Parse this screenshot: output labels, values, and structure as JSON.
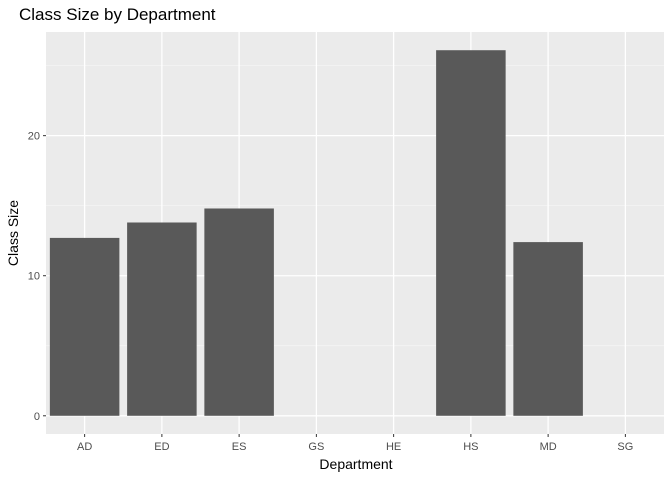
{
  "chart_data": {
    "type": "bar",
    "title": "Class Size by Department",
    "xlabel": "Department",
    "ylabel": "Class Size",
    "categories": [
      "AD",
      "ED",
      "ES",
      "GS",
      "HE",
      "HS",
      "MD",
      "SG"
    ],
    "values": [
      12.7,
      13.8,
      14.8,
      0,
      0,
      26.1,
      12.4,
      0
    ],
    "yticks": [
      0,
      10,
      20
    ],
    "ylim": [
      -1.3,
      27.4
    ],
    "grid": true,
    "legend": "none",
    "colors": {
      "bar": "#595959",
      "panel": "#ebebeb",
      "grid_major": "#ffffff",
      "grid_minor": "#f5f5f5",
      "tick": "#333333",
      "tick_label": "#4d4d4d"
    }
  }
}
